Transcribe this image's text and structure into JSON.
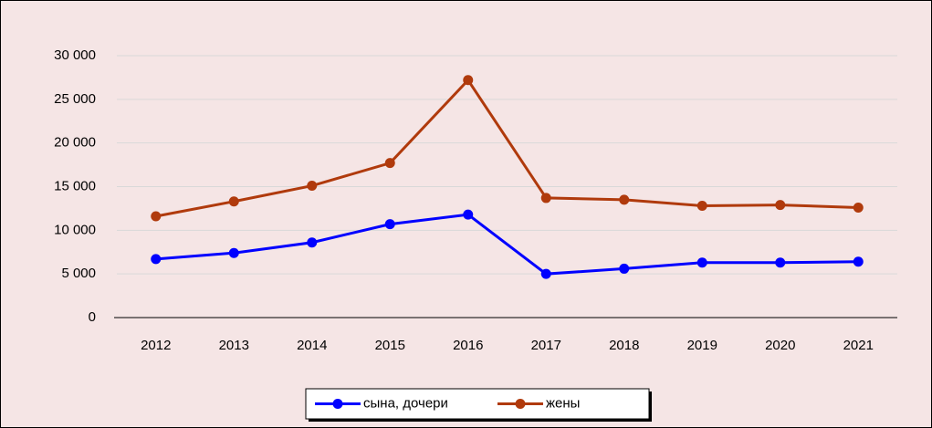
{
  "chart_data": {
    "type": "line",
    "categories": [
      "2012",
      "2013",
      "2014",
      "2015",
      "2016",
      "2017",
      "2018",
      "2019",
      "2020",
      "2021"
    ],
    "series": [
      {
        "name": "сына, дочери",
        "color": "#0000ff",
        "values": [
          6700,
          7400,
          8600,
          10700,
          11800,
          5000,
          5600,
          6300,
          6300,
          6400
        ]
      },
      {
        "name": "жены",
        "color": "#b03a0c",
        "values": [
          11600,
          13300,
          15100,
          17700,
          27200,
          13700,
          13500,
          12800,
          12900,
          12600
        ]
      }
    ],
    "ylim": [
      0,
      30000
    ],
    "yticks": [
      0,
      {
        "value": 5000,
        "label": "5 000"
      },
      {
        "value": 10000,
        "label": "10 000"
      },
      {
        "value": 15000,
        "label": "15 000"
      },
      {
        "value": 20000,
        "label": "20 000"
      },
      {
        "value": 25000,
        "label": "25 000"
      },
      {
        "value": 30000,
        "label": "30 000"
      }
    ],
    "grid": true,
    "legend": "bottom"
  }
}
